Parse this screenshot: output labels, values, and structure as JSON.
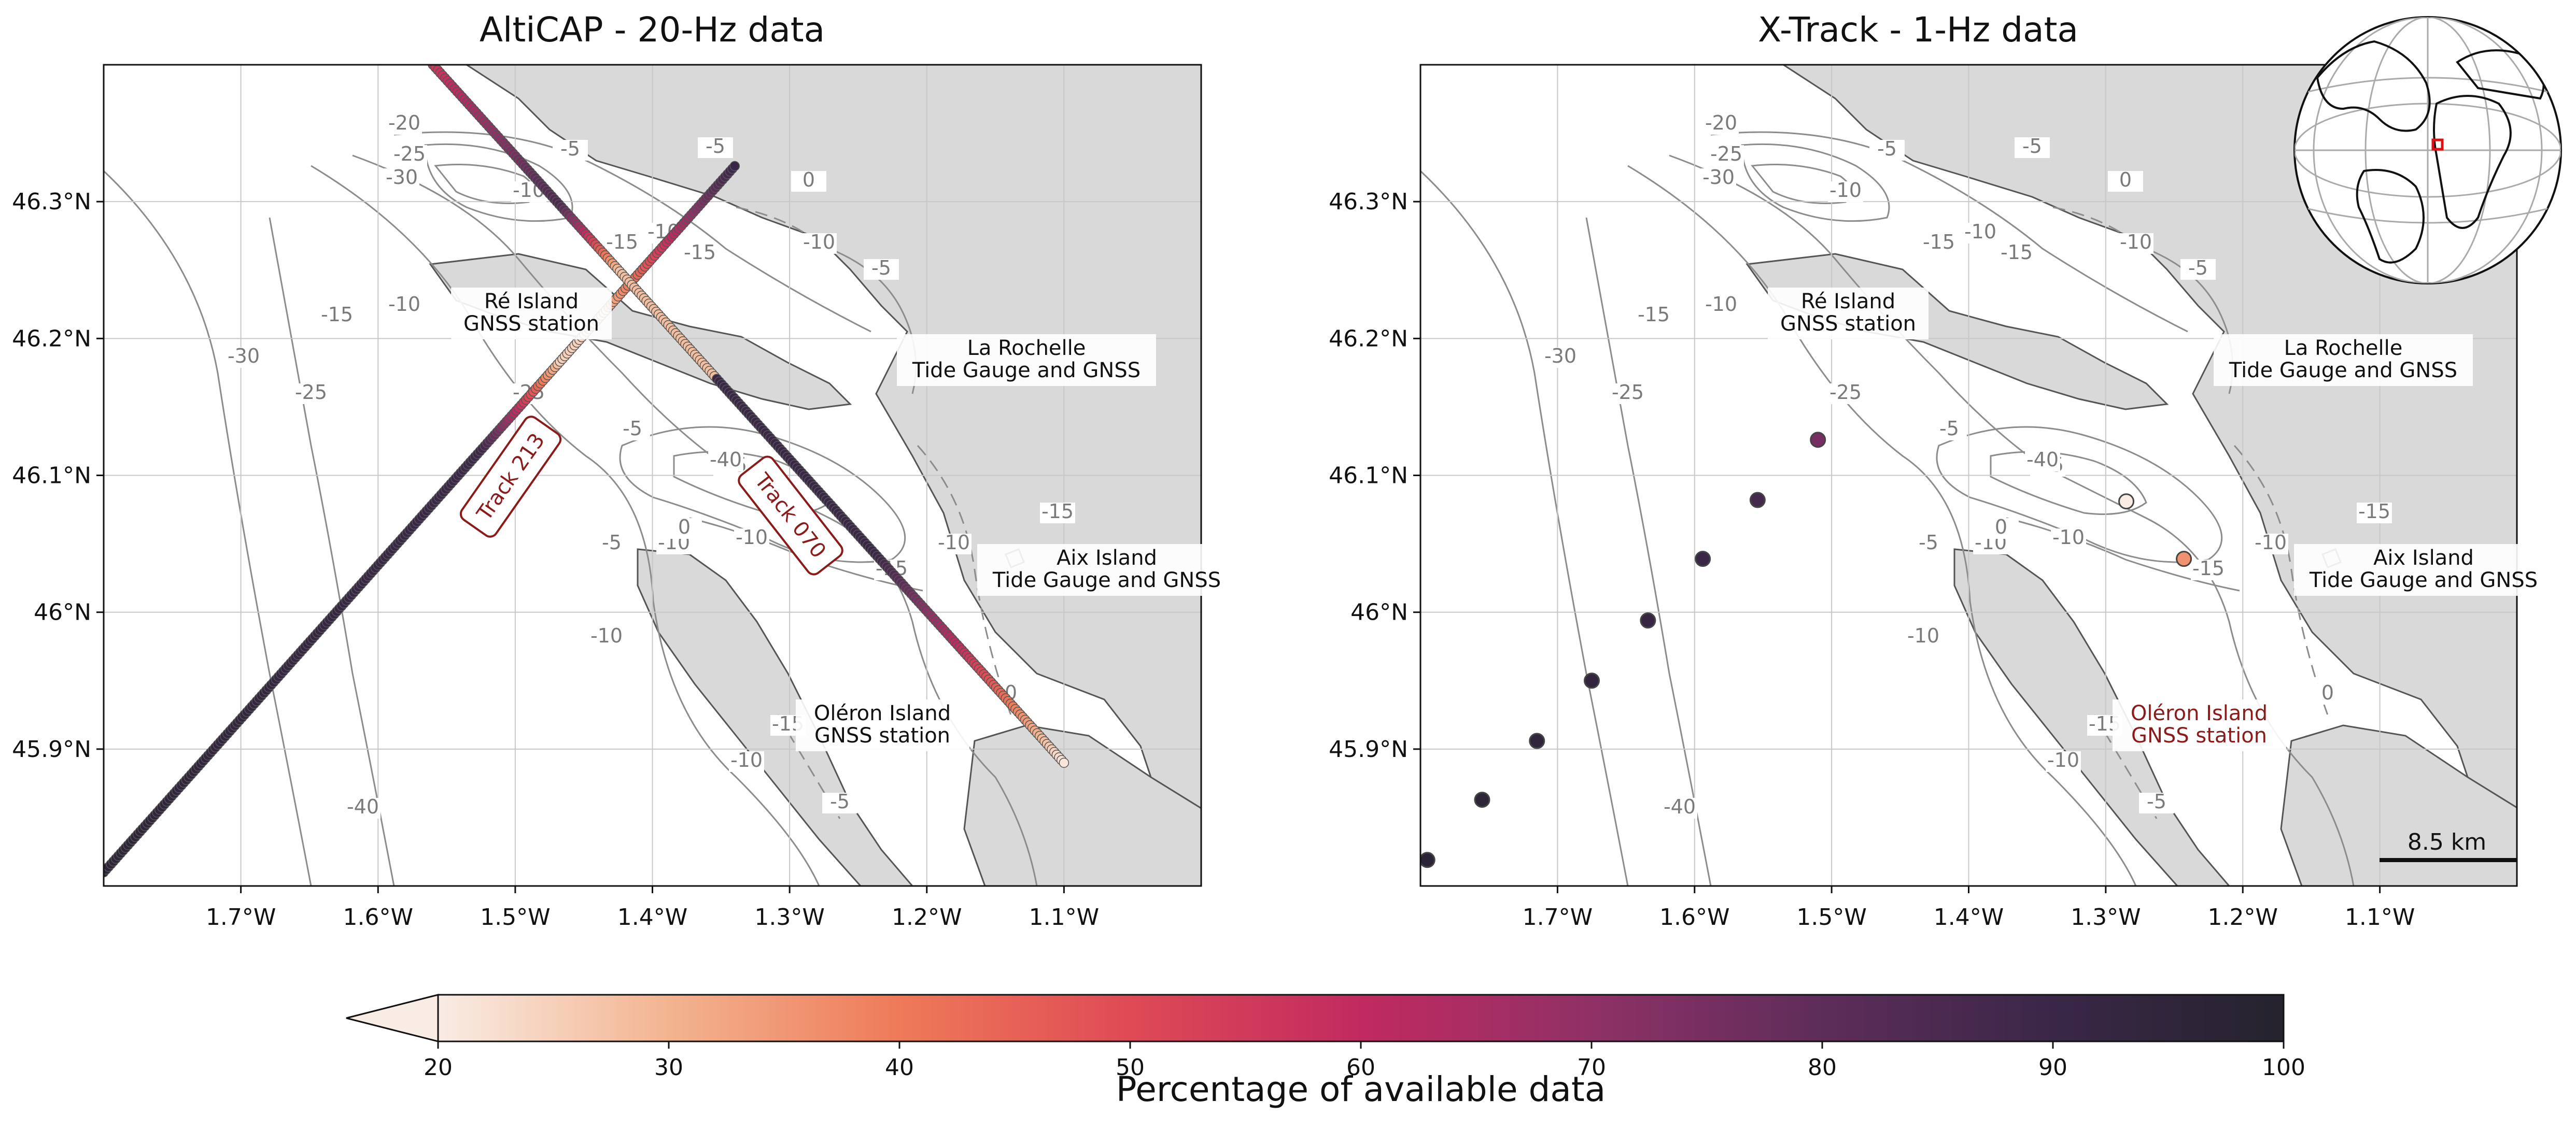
{
  "panels": [
    {
      "id": "altimeter",
      "title": "AltiCAP - 20-Hz data"
    },
    {
      "id": "xtrack",
      "title": "X-Track - 1-Hz data"
    }
  ],
  "axes": {
    "lon_ticks": [
      "1.7°W",
      "1.6°W",
      "1.5°W",
      "1.4°W",
      "1.3°W",
      "1.2°W",
      "1.1°W"
    ],
    "lat_ticks": [
      "46.3°N",
      "46.2°N",
      "46.1°N",
      "46°N",
      "45.9°N"
    ],
    "lon_values": [
      -1.7,
      -1.6,
      -1.5,
      -1.4,
      -1.3,
      -1.2,
      -1.1
    ],
    "lat_values": [
      46.3,
      46.2,
      46.1,
      46.0,
      45.9
    ],
    "lon_range": [
      -1.8,
      -1.0
    ],
    "lat_range": [
      45.8,
      46.4
    ]
  },
  "sites": {
    "re": [
      "Ré Island",
      "GNSS station"
    ],
    "rochelle": [
      "La Rochelle",
      "Tide Gauge and GNSS"
    ],
    "aix": [
      "Aix Island",
      "Tide Gauge and GNSS"
    ],
    "oleron": [
      "Oléron Island",
      "GNSS station"
    ]
  },
  "tracks": {
    "t213": "Track 213",
    "t070": "Track 070"
  },
  "contour_labels": [
    "-20",
    "-25",
    "-30",
    "-5",
    "-10",
    "-15",
    "0",
    "-40"
  ],
  "scale_bar": "8.5 km",
  "colorbar": {
    "label": "Percentage of available data",
    "ticks": [
      "20",
      "30",
      "40",
      "50",
      "60",
      "70",
      "80",
      "90",
      "100"
    ],
    "range": [
      20,
      100
    ],
    "extend": "min"
  },
  "colors": {
    "land": "#d9d9d9",
    "contour": "#8c8c8c",
    "cmap": [
      "#f9ece4",
      "#f3b490",
      "#ee7a59",
      "#df4a55",
      "#c12a60",
      "#8f3166",
      "#5d2d59",
      "#3a2747",
      "#25232e"
    ],
    "marker_edge": "#444444",
    "highlight": "#8b1a1a"
  },
  "xtrack_points": [
    {
      "lon": -1.795,
      "lat": 45.819,
      "pct": 97
    },
    {
      "lon": -1.755,
      "lat": 45.863,
      "pct": 96
    },
    {
      "lon": -1.715,
      "lat": 45.906,
      "pct": 95
    },
    {
      "lon": -1.675,
      "lat": 45.95,
      "pct": 94
    },
    {
      "lon": -1.634,
      "lat": 45.994,
      "pct": 92
    },
    {
      "lon": -1.594,
      "lat": 46.039,
      "pct": 90
    },
    {
      "lon": -1.554,
      "lat": 46.082,
      "pct": 87
    },
    {
      "lon": -1.51,
      "lat": 46.126,
      "pct": 75
    },
    {
      "lon": -1.285,
      "lat": 46.081,
      "pct": 20
    },
    {
      "lon": -1.243,
      "lat": 46.039,
      "pct": 36
    }
  ]
}
